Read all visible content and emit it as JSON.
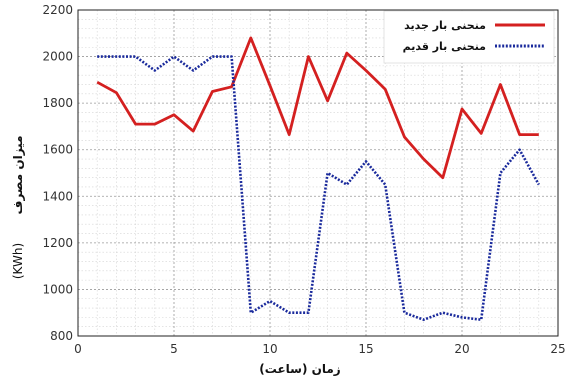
{
  "chart_data": {
    "type": "line",
    "xlabel": "زمان (ساعت)",
    "ylabel_main": "میزان مصرف",
    "ylabel_unit": "(KWh)",
    "xlim": [
      0,
      25
    ],
    "ylim": [
      800,
      2200
    ],
    "x_ticks": [
      0,
      5,
      10,
      15,
      20,
      25
    ],
    "y_ticks": [
      800,
      1000,
      1200,
      1400,
      1600,
      1800,
      2000,
      2200
    ],
    "grid": true,
    "legend_position": "top-right",
    "series": [
      {
        "name": "منحنی بار جدید",
        "color": "#d42020",
        "style": "solid",
        "x": [
          1,
          2,
          3,
          4,
          5,
          6,
          7,
          8,
          9,
          10,
          11,
          12,
          13,
          14,
          15,
          16,
          17,
          18,
          19,
          20,
          21,
          22,
          23,
          24
        ],
        "values": [
          1890,
          1845,
          1710,
          1710,
          1750,
          1680,
          1850,
          1870,
          2080,
          1875,
          1665,
          2000,
          1810,
          2015,
          1940,
          1860,
          1655,
          1560,
          1480,
          1775,
          1670,
          1880,
          1665,
          1665
        ]
      },
      {
        "name": "منحنی بار قدیم",
        "color": "#1a2a9c",
        "style": "dotted",
        "x": [
          1,
          2,
          3,
          4,
          5,
          6,
          7,
          8,
          9,
          10,
          11,
          12,
          13,
          14,
          15,
          16,
          17,
          18,
          19,
          20,
          21,
          22,
          23,
          24
        ],
        "values": [
          2000,
          2000,
          2000,
          1940,
          2000,
          1940,
          2000,
          2000,
          900,
          950,
          900,
          900,
          1500,
          1450,
          1550,
          1450,
          900,
          870,
          900,
          880,
          870,
          1500,
          1600,
          1450
        ]
      }
    ]
  }
}
